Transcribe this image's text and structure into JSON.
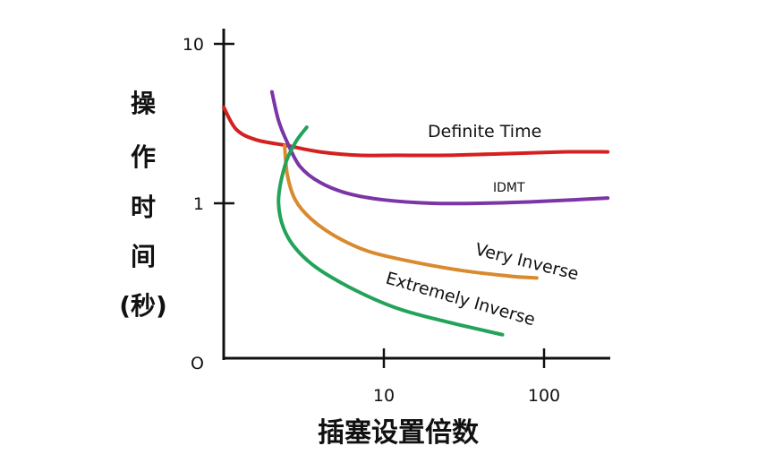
{
  "chart_data": {
    "type": "line",
    "xlabel": "插塞设置倍数",
    "ylabel_chars": [
      "操",
      "作",
      "时",
      "间",
      "(秒)"
    ],
    "x_scale": "log",
    "y_scale": "log",
    "origin_label": "O",
    "x_ticks": [
      {
        "value": 10,
        "label": "10"
      },
      {
        "value": 100,
        "label": "100"
      }
    ],
    "y_ticks": [
      {
        "value": 1,
        "label": "1"
      },
      {
        "value": 10,
        "label": "10"
      }
    ],
    "series": [
      {
        "name": "Definite Time",
        "color": "#d42020",
        "points": [
          [
            1,
            4.0
          ],
          [
            1.2,
            2.9
          ],
          [
            1.6,
            2.5
          ],
          [
            2.5,
            2.3
          ],
          [
            4,
            2.1
          ],
          [
            7,
            2.0
          ],
          [
            12,
            2.0
          ],
          [
            25,
            2.0
          ],
          [
            60,
            2.05
          ],
          [
            130,
            2.1
          ],
          [
            250,
            2.1
          ]
        ]
      },
      {
        "name": "IDMT",
        "color": "#7b35a6",
        "points": [
          [
            2,
            5.0
          ],
          [
            2.2,
            3.3
          ],
          [
            2.5,
            2.4
          ],
          [
            3,
            1.7
          ],
          [
            4,
            1.35
          ],
          [
            6,
            1.15
          ],
          [
            10,
            1.05
          ],
          [
            20,
            1.0
          ],
          [
            40,
            1.0
          ],
          [
            80,
            1.02
          ],
          [
            150,
            1.05
          ],
          [
            250,
            1.08
          ]
        ]
      },
      {
        "name": "Very Inverse",
        "color": "#d98a2e",
        "points": [
          [
            2.4,
            2.3
          ],
          [
            2.5,
            1.5
          ],
          [
            2.8,
            1.05
          ],
          [
            3.5,
            0.8
          ],
          [
            5,
            0.62
          ],
          [
            8,
            0.5
          ],
          [
            15,
            0.43
          ],
          [
            30,
            0.38
          ],
          [
            60,
            0.35
          ],
          [
            90,
            0.34
          ]
        ]
      },
      {
        "name": "Extremely Inverse",
        "color": "#23a35a",
        "points": [
          [
            3.3,
            3.0
          ],
          [
            2.8,
            2.4
          ],
          [
            2.4,
            1.7
          ],
          [
            2.2,
            1.0
          ],
          [
            2.5,
            0.62
          ],
          [
            3.5,
            0.42
          ],
          [
            6,
            0.3
          ],
          [
            12,
            0.22
          ],
          [
            25,
            0.18
          ],
          [
            55,
            0.15
          ]
        ]
      }
    ],
    "annotations": [
      {
        "text": "Definite Time",
        "series": "Definite Time"
      },
      {
        "text": "IDMT",
        "series": "IDMT"
      },
      {
        "text": "Very Inverse",
        "series": "Very Inverse"
      },
      {
        "text": "Extremely Inverse",
        "series": "Extremely Inverse"
      }
    ]
  }
}
